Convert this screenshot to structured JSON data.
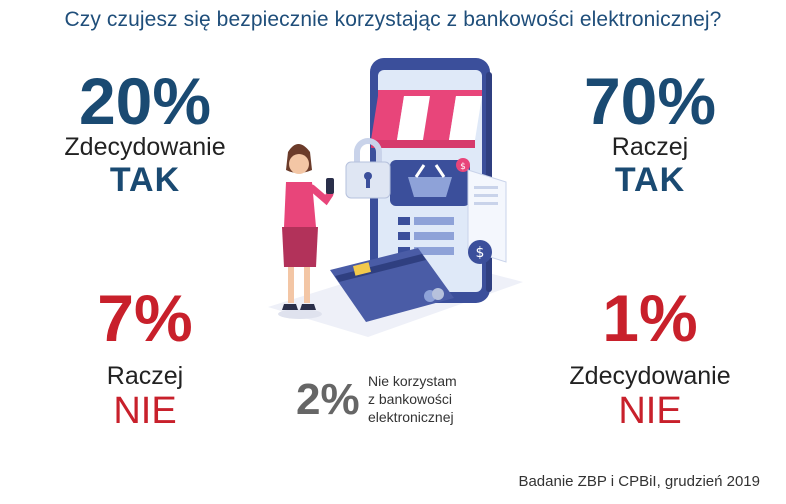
{
  "title": "Czy czujesz się bezpiecznie korzystając z bankowości elektronicznej?",
  "stats": {
    "zdecydowanie_tak": {
      "percent": "20%",
      "label": "Zdecydowanie",
      "answer": "TAK",
      "color": "#1a4a72"
    },
    "raczej_tak": {
      "percent": "70%",
      "label": "Raczej",
      "answer": "TAK",
      "color": "#1a4a72"
    },
    "raczej_nie": {
      "percent": "7%",
      "label": "Raczej",
      "answer": "NIE",
      "color": "#c8202b"
    },
    "zdecydowanie_nie": {
      "percent": "1%",
      "label": "Zdecydowanie",
      "answer": "NIE",
      "color": "#c8202b"
    },
    "nie_korzystam": {
      "percent": "2%",
      "line1": "Nie korzystam",
      "line2": "z bankowości",
      "line3": "elektronicznej"
    }
  },
  "source": "Badanie ZBP i CPBiI, grudzień 2019",
  "icons": [
    "phone-shop-illustration",
    "woman-with-phone-icon",
    "padlock-icon",
    "shopping-basket-icon",
    "credit-card-icon",
    "receipt-icon",
    "dollar-coin-icon"
  ]
}
